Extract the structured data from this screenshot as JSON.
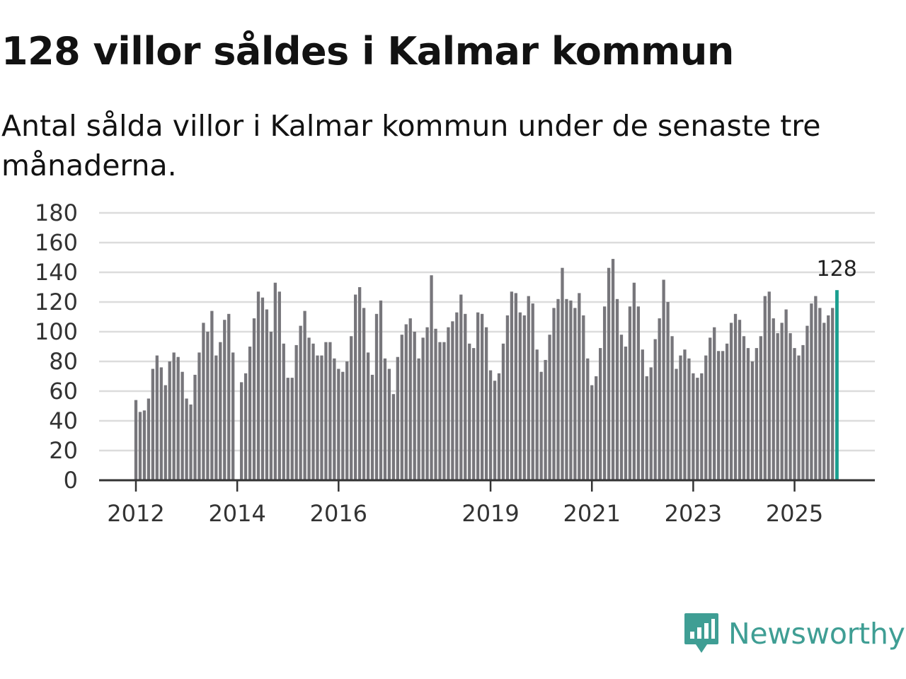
{
  "chart_data": {
    "type": "bar",
    "title": "128 villor såldes i Kalmar kommun",
    "subtitle": "Antal sålda villor i Kalmar kommun under de senaste tre månaderna.",
    "xlabel": "",
    "ylabel": "",
    "ylim": [
      0,
      180
    ],
    "y_ticks": [
      0,
      20,
      40,
      60,
      80,
      100,
      120,
      140,
      160,
      180
    ],
    "x_tick_labels": [
      {
        "label": "2012",
        "index": 0
      },
      {
        "label": "2014",
        "index": 24
      },
      {
        "label": "2016",
        "index": 48
      },
      {
        "label": "2019",
        "index": 84
      },
      {
        "label": "2021",
        "index": 108
      },
      {
        "label": "2023",
        "index": 132
      },
      {
        "label": "2025",
        "index": 156
      }
    ],
    "grid": true,
    "values": [
      54,
      46,
      47,
      55,
      75,
      84,
      76,
      64,
      80,
      86,
      83,
      73,
      55,
      51,
      71,
      86,
      106,
      100,
      114,
      84,
      93,
      108,
      112,
      86,
      null,
      66,
      72,
      90,
      109,
      127,
      123,
      115,
      100,
      133,
      127,
      92,
      69,
      69,
      91,
      104,
      114,
      96,
      92,
      84,
      84,
      93,
      93,
      82,
      75,
      73,
      80,
      97,
      125,
      130,
      116,
      86,
      71,
      112,
      121,
      82,
      75,
      58,
      83,
      98,
      105,
      109,
      100,
      82,
      96,
      103,
      138,
      102,
      93,
      93,
      103,
      107,
      113,
      125,
      112,
      92,
      89,
      113,
      112,
      103,
      74,
      67,
      72,
      92,
      111,
      127,
      126,
      113,
      111,
      124,
      119,
      88,
      73,
      81,
      98,
      116,
      122,
      143,
      122,
      121,
      116,
      126,
      111,
      82,
      64,
      70,
      89,
      117,
      143,
      149,
      122,
      98,
      90,
      117,
      133,
      117,
      88,
      70,
      76,
      95,
      109,
      135,
      120,
      97,
      75,
      84,
      88,
      82,
      72,
      69,
      72,
      84,
      96,
      103,
      87,
      87,
      92,
      106,
      112,
      108,
      97,
      89,
      80,
      89,
      97,
      124,
      127,
      109,
      99,
      106,
      115,
      99,
      89,
      84,
      91,
      104,
      119,
      124,
      116,
      106,
      111,
      116,
      128
    ],
    "highlight_last": true,
    "last_value_label": "128",
    "colors": {
      "bar": "#77767b",
      "highlight": "#1a9e8f",
      "grid": "#dcdcdc",
      "axis": "#333333"
    }
  },
  "brand": {
    "name": "Newsworthy",
    "logo_icon": "newsworthy-logo-icon",
    "color": "#3f9e94"
  }
}
